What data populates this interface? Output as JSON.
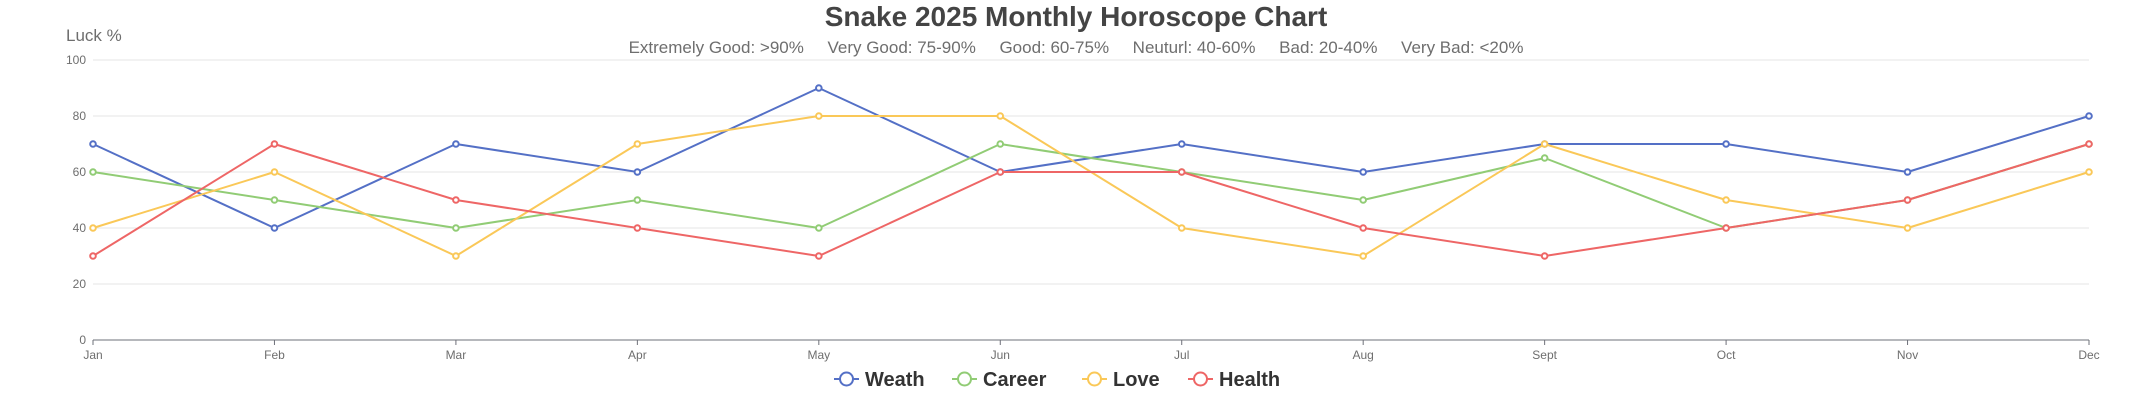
{
  "chart_data": {
    "type": "line",
    "title": "Snake 2025 Monthly Horoscope Chart",
    "subtitle": "Extremely Good: >90%     Very Good: 75-90%     Good: 60-75%     Neuturl: 40-60%     Bad: 20-40%     Very Bad: <20%",
    "xlabel": "",
    "ylabel": "Luck %",
    "ylim": [
      0,
      100
    ],
    "yticks": [
      "0",
      "20",
      "40",
      "60",
      "80",
      "100"
    ],
    "grid": true,
    "legend_position": "bottom",
    "categories": [
      "Jan",
      "Feb",
      "Mar",
      "Apr",
      "May",
      "Jun",
      "Jul",
      "Aug",
      "Sept",
      "Oct",
      "Nov",
      "Dec"
    ],
    "series": [
      {
        "name": "Weath",
        "color": "#5470c6",
        "values": [
          70,
          40,
          70,
          60,
          90,
          60,
          70,
          60,
          70,
          70,
          60,
          80
        ]
      },
      {
        "name": "Career",
        "color": "#91cc75",
        "values": [
          60,
          50,
          40,
          50,
          40,
          70,
          60,
          50,
          65,
          40,
          50,
          70
        ]
      },
      {
        "name": "Love",
        "color": "#fac858",
        "values": [
          40,
          60,
          30,
          70,
          80,
          80,
          40,
          30,
          70,
          50,
          40,
          60
        ]
      },
      {
        "name": "Health",
        "color": "#ee6666",
        "values": [
          30,
          70,
          50,
          40,
          30,
          60,
          60,
          40,
          30,
          40,
          50,
          70
        ]
      }
    ]
  }
}
